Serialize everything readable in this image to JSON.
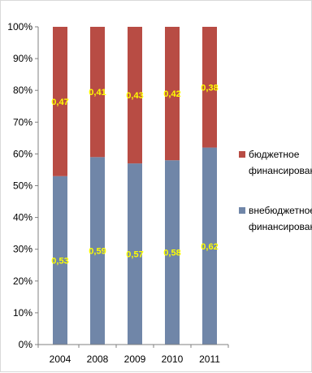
{
  "chart_data": {
    "type": "bar",
    "stacked": true,
    "categories": [
      "2004",
      "2008",
      "2009",
      "2010",
      "2011"
    ],
    "series": [
      {
        "name": "внебюджетное финансирование",
        "values": [
          0.53,
          0.59,
          0.57,
          0.58,
          0.62
        ],
        "labels": [
          "0,53",
          "0,59",
          "0,57",
          "0,58",
          "0,62"
        ],
        "color": "#7086a8"
      },
      {
        "name": "бюджетное финансирование",
        "values": [
          0.47,
          0.41,
          0.43,
          0.42,
          0.38
        ],
        "labels": [
          "0,47",
          "0,41",
          "0,43",
          "0,42",
          "0,38"
        ],
        "color": "#b84c44"
      }
    ],
    "ylim": [
      0,
      1
    ],
    "yticks": [
      "0%",
      "10%",
      "20%",
      "30%",
      "40%",
      "50%",
      "60%",
      "70%",
      "80%",
      "90%",
      "100%"
    ],
    "grid": false,
    "legend_position": "right",
    "legend": [
      {
        "line1": "бюджетное",
        "line2": "финансирование",
        "color": "#b84c44"
      },
      {
        "line1": "внебюджетное",
        "line2": "финансирование",
        "color": "#7086a8"
      }
    ],
    "label_color": "#ffff00"
  }
}
